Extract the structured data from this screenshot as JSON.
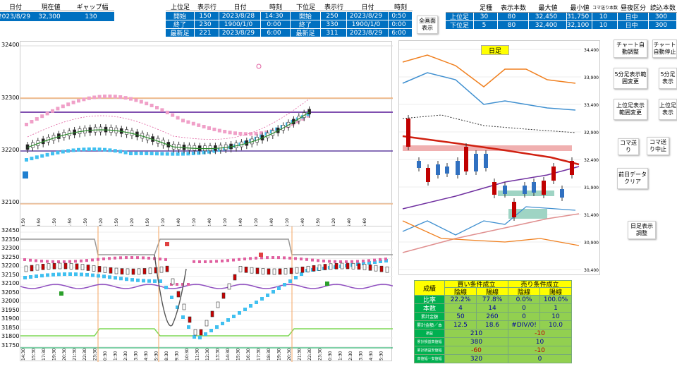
{
  "top_left": {
    "headers": [
      "日付",
      "現在値",
      "ギャップ幅"
    ],
    "values": [
      "2023/8/29",
      "32,300",
      "130"
    ]
  },
  "upper_table": {
    "headers": [
      "上位足",
      "表示行",
      "日付",
      "時刻",
      "下位足",
      "表示行",
      "日付",
      "時刻"
    ],
    "rows": [
      [
        "開始",
        "150",
        "2023/8/28",
        "14:30",
        "開始",
        "250",
        "2023/8/29",
        "0:50"
      ],
      [
        "終了",
        "230",
        "1900/1/0",
        "0:00",
        "終了",
        "330",
        "1900/1/0",
        "0:00"
      ],
      [
        "最新足",
        "221",
        "2023/8/29",
        "6:00",
        "最新足",
        "311",
        "2023/8/29",
        "6:00"
      ]
    ]
  },
  "full_display_button": "全画面表示",
  "right_table": {
    "headers": [
      "",
      "足種",
      "表示本数",
      "最大値",
      "最小値",
      "コマ送り本数",
      "昼夜区分",
      "読込本数"
    ],
    "rows": [
      [
        "上位足",
        "30",
        "80",
        "32,450",
        "31,750",
        "10",
        "日中",
        "300"
      ],
      [
        "下位足",
        "5",
        "80",
        "32,400",
        "32,100",
        "10",
        "日中",
        "300"
      ]
    ]
  },
  "buttons": {
    "auto_adjust": "チャート自動調整",
    "chart_stop": "チャート自動停止",
    "five_min_change": "5分足表示範囲変更",
    "five_min_display": "5分足表示",
    "upper_range_change": "上位足表示範囲変更",
    "upper_display": "上位足表示",
    "koma_okuri": "コマ送り",
    "koma_stop": "コマ送り中止",
    "clear_prev": "前日データクリア",
    "daily_display": "日足表示調整"
  },
  "chart1": {
    "y_labels": [
      "32400",
      "32300",
      "32200",
      "32100"
    ],
    "x_labels": [
      "3:50",
      "0:50",
      "1:50",
      "1:50",
      "1:50",
      "2:20",
      "2:50",
      "3:20",
      "3:50",
      "3:10",
      "3:40",
      "2:10",
      "2:40",
      "3:10",
      "3:40",
      "4:10",
      "4:40",
      "5:10",
      "5:40",
      "5:50",
      "4:20",
      "5:40",
      "5:60"
    ]
  },
  "chart2": {
    "y_labels": [
      "32450",
      "32350",
      "32300",
      "32250",
      "32200",
      "32150",
      "32100",
      "32050",
      "32000",
      "31950",
      "31900",
      "31850",
      "31800",
      "31750"
    ],
    "x_labels": [
      "14:30",
      "15:30",
      "17:30",
      "19:30",
      "20:30",
      "21:30",
      "22:30",
      "23:30",
      "0:30",
      "1:30",
      "2:30",
      "3:30",
      "4:30",
      "5:30",
      "8:30",
      "9:30",
      "10:30",
      "11:30",
      "12:30",
      "13:30",
      "14:30",
      "15:30",
      "16:30",
      "17:30",
      "18:30",
      "19:30",
      "20:30",
      "21:30",
      "22:30",
      "23:30",
      "0:30",
      "1:30",
      "2:30",
      "3:30",
      "4:30",
      "5:30"
    ]
  },
  "daily": {
    "title": "日足",
    "y_labels": [
      "34,400",
      "33,900",
      "33,400",
      "32,900",
      "32,400",
      "31,900",
      "31,400",
      "30,900",
      "30,400"
    ]
  },
  "stats": {
    "title": "成績",
    "buy": "買い条件成立",
    "sell": "売り条件成立",
    "sub": [
      "陰線",
      "陽線",
      "陰線",
      "陽線"
    ],
    "rows": [
      {
        "label": "比率",
        "v": [
          "22.2%",
          "77.8%",
          "0.0%",
          "100.0%"
        ]
      },
      {
        "label": "本数",
        "v": [
          "4",
          "14",
          "0",
          "1"
        ]
      },
      {
        "label": "累計金額",
        "v": [
          "50",
          "260",
          "0",
          "10"
        ]
      },
      {
        "label": "累計金額／本",
        "v": [
          "12.5",
          "18.6",
          "#DIV/0!",
          "10.0"
        ]
      }
    ],
    "rows2": [
      {
        "label": "損益",
        "buy": "210",
        "sell": "-10"
      },
      {
        "label": "累計損益高値幅",
        "buy": "380",
        "sell": "10"
      },
      {
        "label": "累計損益安値幅",
        "buy": "-60",
        "sell": "-10"
      },
      {
        "label": "高値幅ー安値幅",
        "buy": "320",
        "sell": "0"
      }
    ]
  },
  "colors": {
    "blue": "#0070c0",
    "green": "#92d050",
    "yellow": "#ffff00",
    "stat_green": "#00b050",
    "red": "#c00000"
  }
}
